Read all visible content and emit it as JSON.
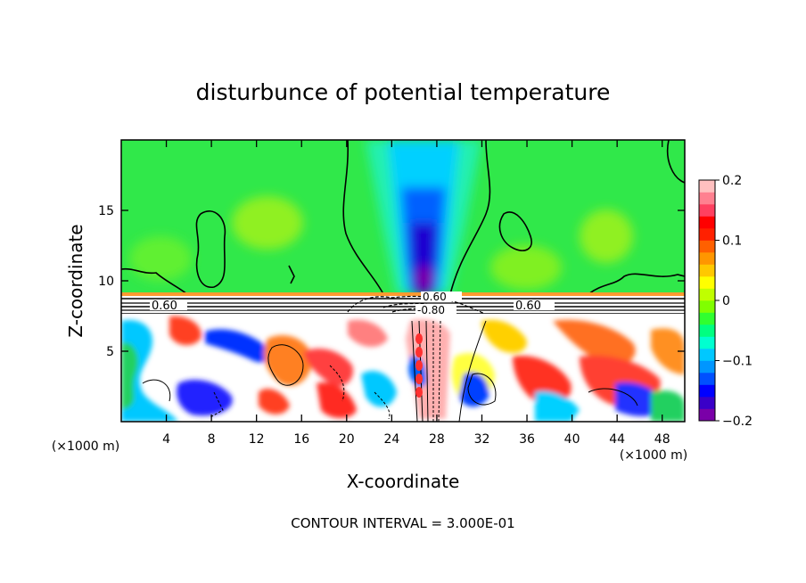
{
  "chart_data": {
    "type": "heatmap",
    "title": "disturbunce of potential temperature",
    "xlabel": "X-coordinate",
    "ylabel": "Z-coordinate",
    "x_unit_left": "(×1000 m)",
    "x_unit_right": "(×1000 m)",
    "xlim": [
      0,
      50
    ],
    "ylim": [
      0,
      20
    ],
    "x_ticks": [
      "4",
      "8",
      "12",
      "16",
      "20",
      "24",
      "28",
      "32",
      "36",
      "40",
      "44",
      "48"
    ],
    "y_ticks": [
      "5",
      "10",
      "15"
    ],
    "colorbar": {
      "range": [
        -0.2,
        0.2
      ],
      "ticks": [
        "0.2",
        "0.1",
        "0",
        "−0.1",
        "−0.2"
      ],
      "colors": [
        "#7a00a8",
        "#3a00c8",
        "#0000ff",
        "#0050ff",
        "#0096ff",
        "#00c8ff",
        "#00ffd0",
        "#00ff80",
        "#30ff30",
        "#80ff00",
        "#c0ff00",
        "#ffff00",
        "#ffc800",
        "#ff9600",
        "#ff6000",
        "#ff2000",
        "#ff0000",
        "#ff4060",
        "#ff8090",
        "#ffc0c0"
      ]
    },
    "contour_labels": [
      "0.60",
      "0.60",
      "0.60",
      "-0.80"
    ],
    "footer": "CONTOUR INTERVAL = 3.000E-01"
  }
}
